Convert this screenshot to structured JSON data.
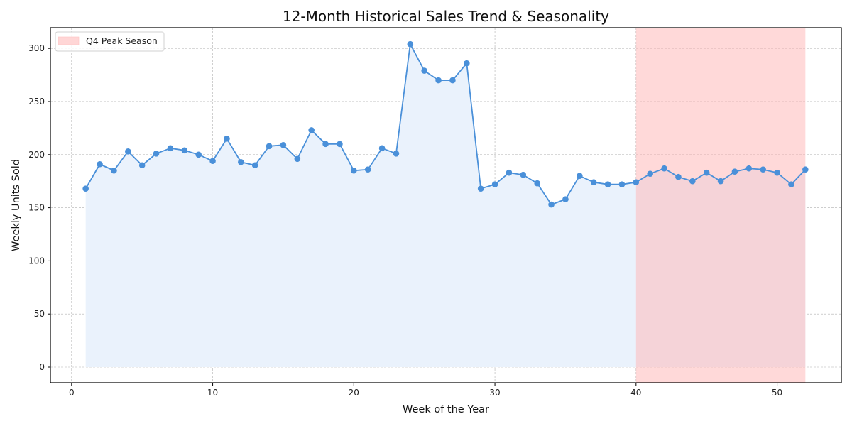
{
  "chart_data": {
    "type": "line",
    "title": "12-Month Historical Sales Trend & Seasonality",
    "xlabel": "Week of the Year",
    "ylabel": "Weekly Units Sold",
    "xlim": [
      -1.5,
      54.55
    ],
    "ylim": [
      -14.7,
      319.5
    ],
    "xticks": [
      0,
      10,
      20,
      30,
      40,
      50
    ],
    "yticks": [
      0,
      50,
      100,
      150,
      200,
      250,
      300
    ],
    "grid": true,
    "legend_position": "upper left",
    "x": [
      1,
      2,
      3,
      4,
      5,
      6,
      7,
      8,
      9,
      10,
      11,
      12,
      13,
      14,
      15,
      16,
      17,
      18,
      19,
      20,
      21,
      22,
      23,
      24,
      25,
      26,
      27,
      28,
      29,
      30,
      31,
      32,
      33,
      34,
      35,
      36,
      37,
      38,
      39,
      40,
      41,
      42,
      43,
      44,
      45,
      46,
      47,
      48,
      49,
      50,
      51,
      52
    ],
    "series": [
      {
        "name": "Weekly Units Sold",
        "color": "#4a90d9",
        "fill": "#eaf2fc",
        "marker": "circle",
        "values": [
          168,
          191,
          185,
          203,
          190,
          201,
          206,
          204,
          200,
          194,
          215,
          193,
          190,
          208,
          209,
          196,
          223,
          210,
          210,
          185,
          186,
          206,
          201,
          304,
          279,
          270,
          270,
          286,
          168,
          172,
          183,
          181,
          173,
          153,
          158,
          180,
          174,
          172,
          172,
          174,
          182,
          187,
          179,
          175,
          183,
          175,
          184,
          187,
          186,
          183,
          172,
          186
        ]
      }
    ],
    "annotations": [
      {
        "type": "shaded_span",
        "label": "Q4 Peak Season",
        "x_start": 40,
        "x_end": 52,
        "color": "#ffb3b3",
        "opacity": 0.5
      }
    ]
  },
  "legend": {
    "items": [
      {
        "label": "Q4 Peak Season",
        "swatch_color": "#ffd6d6"
      }
    ]
  }
}
